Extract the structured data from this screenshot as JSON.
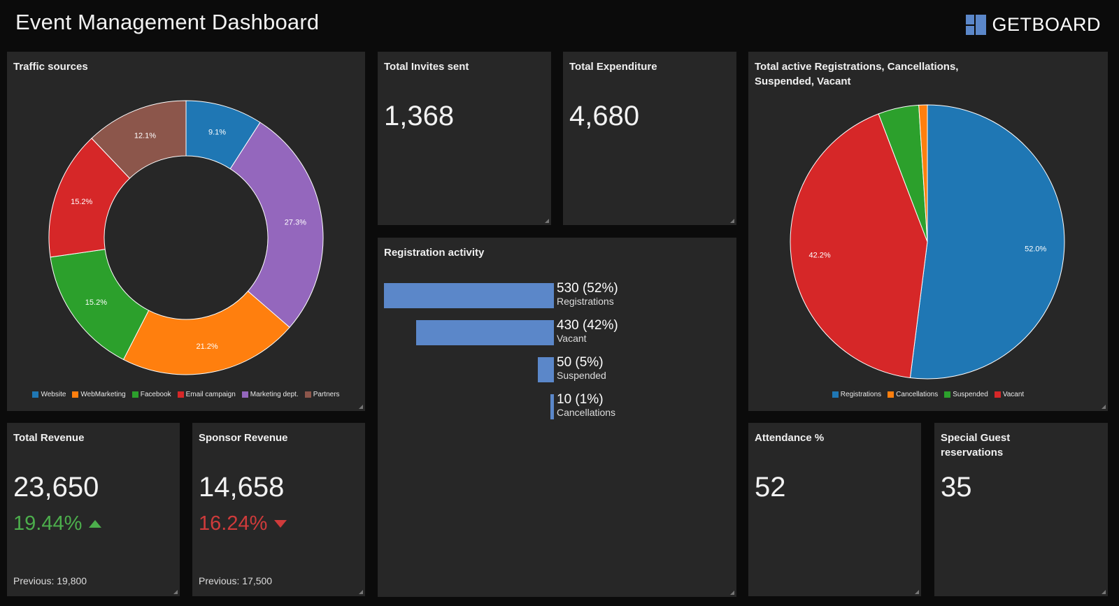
{
  "header": {
    "title": "Event Management Dashboard",
    "brand": "GETBOARD"
  },
  "traffic": {
    "title": "Traffic sources",
    "chart_data": {
      "type": "pie",
      "donut": true,
      "categories": [
        "Website",
        "WebMarketing",
        "Facebook",
        "Email campaign",
        "Marketing dept.",
        "Partners"
      ],
      "values": [
        9.1,
        21.2,
        15.2,
        15.2,
        27.3,
        12.1
      ],
      "labels": [
        "9.1%",
        "21.2%",
        "15.2%",
        "15.2%",
        "27.3%",
        "12.1%"
      ],
      "colors": [
        "#1f77b4",
        "#ff7f0e",
        "#2ca02c",
        "#d62728",
        "#9467bd",
        "#8c564b"
      ],
      "draw_order": [
        0,
        4,
        1,
        2,
        3,
        5
      ],
      "legend_position": "bottom"
    }
  },
  "invites": {
    "title": "Total Invites sent",
    "value": "1,368"
  },
  "expenditure": {
    "title": "Total Expenditure",
    "value": "4,680"
  },
  "status": {
    "title": "Total active Registrations, Cancellations, Suspended, Vacant",
    "chart_data": {
      "type": "pie",
      "categories": [
        "Registrations",
        "Cancellations",
        "Suspended",
        "Vacant"
      ],
      "values": [
        52.0,
        1.0,
        4.8,
        42.2
      ],
      "labels": [
        "52.0%",
        "",
        "",
        "42.2%"
      ],
      "colors": [
        "#1f77b4",
        "#ff7f0e",
        "#2ca02c",
        "#d62728"
      ],
      "draw_order": [
        0,
        3,
        2,
        1
      ],
      "legend_position": "bottom"
    }
  },
  "registration_activity": {
    "title": "Registration activity",
    "chart_data": {
      "type": "bar",
      "orientation": "horizontal",
      "categories": [
        "Registrations",
        "Vacant",
        "Suspended",
        "Cancellations"
      ],
      "values": [
        530,
        430,
        50,
        10
      ],
      "value_labels": [
        "530 (52%)",
        "430 (42%)",
        "50 (5%)",
        "10 (1%)"
      ],
      "color": "#5b87c9"
    }
  },
  "total_revenue": {
    "title": "Total Revenue",
    "value": "23,650",
    "change": "19.44%",
    "direction": "up",
    "previous": "Previous: 19,800"
  },
  "sponsor_revenue": {
    "title": "Sponsor Revenue",
    "value": "14,658",
    "change": "16.24%",
    "direction": "down",
    "previous": "Previous: 17,500"
  },
  "attendance": {
    "title": "Attendance %",
    "value": "52"
  },
  "special_guest": {
    "title": "Special Guest reservations",
    "value": "35"
  }
}
